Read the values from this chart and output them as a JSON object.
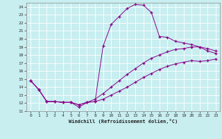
{
  "xlabel": "Windchill (Refroidissement éolien,°C)",
  "bg_color": "#c8eef0",
  "line_color": "#880088",
  "xlim": [
    -0.5,
    23.5
  ],
  "ylim": [
    11,
    24.5
  ],
  "xticks": [
    0,
    1,
    2,
    3,
    4,
    5,
    6,
    7,
    8,
    9,
    10,
    11,
    12,
    13,
    14,
    15,
    16,
    17,
    18,
    19,
    20,
    21,
    22,
    23
  ],
  "yticks": [
    11,
    12,
    13,
    14,
    15,
    16,
    17,
    18,
    19,
    20,
    21,
    22,
    23,
    24
  ],
  "line1_x": [
    0,
    1,
    2,
    3,
    4,
    5,
    6,
    7,
    8,
    9,
    10,
    11,
    12,
    13,
    14,
    15,
    16,
    17,
    18,
    19,
    20,
    21,
    22,
    23
  ],
  "line1_y": [
    14.8,
    13.7,
    12.2,
    12.2,
    12.1,
    12.1,
    11.5,
    12.1,
    12.2,
    19.1,
    21.8,
    22.8,
    23.8,
    24.3,
    24.2,
    23.3,
    20.3,
    20.2,
    19.7,
    19.5,
    19.3,
    19.0,
    18.5,
    18.2
  ],
  "line2_x": [
    0,
    1,
    2,
    3,
    4,
    5,
    6,
    7,
    8,
    9,
    10,
    11,
    12,
    13,
    14,
    15,
    16,
    17,
    18,
    19,
    20,
    21,
    22,
    23
  ],
  "line2_y": [
    14.8,
    13.7,
    12.2,
    12.2,
    12.1,
    12.1,
    11.8,
    12.1,
    12.5,
    13.2,
    14.0,
    14.8,
    15.6,
    16.3,
    17.0,
    17.6,
    18.0,
    18.4,
    18.7,
    18.8,
    19.0,
    19.0,
    18.8,
    18.5
  ],
  "line3_x": [
    0,
    1,
    2,
    3,
    4,
    5,
    6,
    7,
    8,
    9,
    10,
    11,
    12,
    13,
    14,
    15,
    16,
    17,
    18,
    19,
    20,
    21,
    22,
    23
  ],
  "line3_y": [
    14.8,
    13.7,
    12.2,
    12.2,
    12.1,
    12.1,
    11.8,
    12.1,
    12.2,
    12.5,
    13.0,
    13.5,
    14.0,
    14.6,
    15.2,
    15.7,
    16.2,
    16.6,
    16.9,
    17.1,
    17.3,
    17.2,
    17.3,
    17.5
  ]
}
